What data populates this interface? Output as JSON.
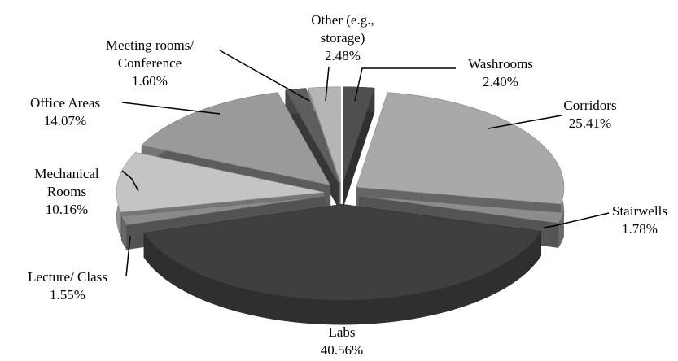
{
  "chart_data": {
    "type": "pie",
    "categories": [
      "Washrooms",
      "Corridors",
      "Stairwells",
      "Labs",
      "Lecture/ Class",
      "Mechanical Rooms",
      "Office Areas",
      "Meeting rooms/ Conference",
      "Other (e.g., storage)"
    ],
    "values": [
      2.4,
      25.41,
      1.78,
      40.56,
      1.55,
      10.16,
      14.07,
      1.6,
      2.48
    ],
    "value_labels": [
      "2.40%",
      "25.41%",
      "1.78%",
      "40.56%",
      "1.55%",
      "10.16%",
      "14.07%",
      "1.60%",
      "2.48%"
    ],
    "colors": [
      "#4f4f4f",
      "#a9a9a9",
      "#8c8c8c",
      "#3f3f3f",
      "#8a8a8a",
      "#c4c4c4",
      "#9a9a9a",
      "#5e5e5e",
      "#b5b5b5"
    ]
  }
}
